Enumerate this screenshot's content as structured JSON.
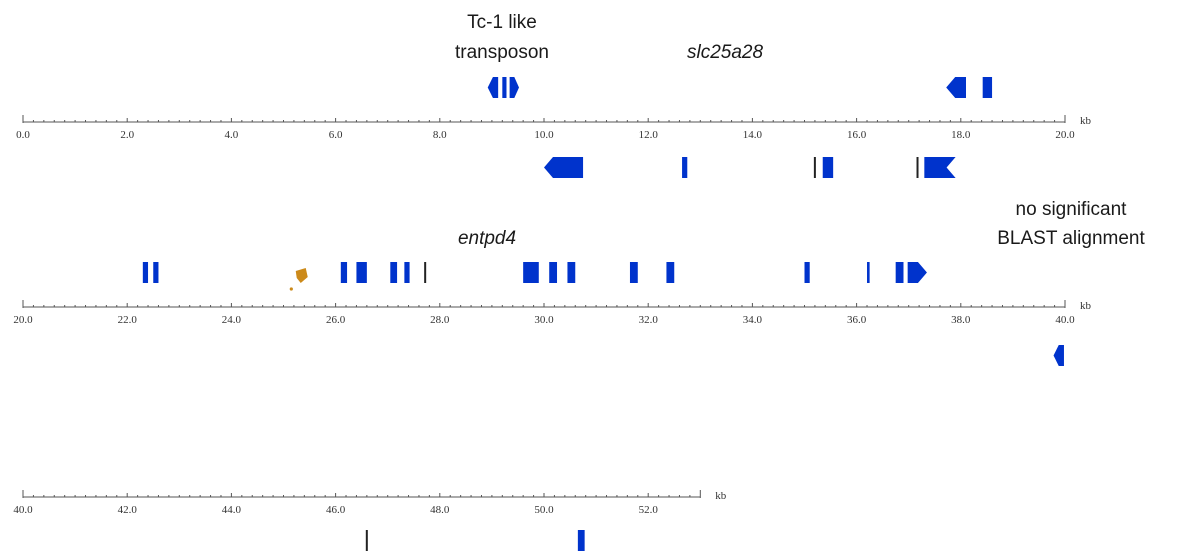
{
  "annotations": {
    "transposon_line1": "Tc-1 like",
    "transposon_line2": "transposon",
    "gene_top": "slc25a28",
    "gene_middle": "entpd4",
    "noalign_line1": "no significant",
    "noalign_line2": "BLAST alignment"
  },
  "colors": {
    "exon": "#0033cc",
    "marker": "#cc8a1a",
    "axis": "#555555"
  },
  "tracks": [
    {
      "id": "track-1",
      "start": 0,
      "end": 20,
      "unit": "kb",
      "ticks": [
        "0.0",
        "2.0",
        "4.0",
        "6.0",
        "8.0",
        "10.0",
        "12.0",
        "14.0",
        "16.0",
        "18.0",
        "20.0"
      ],
      "above": [
        {
          "s": 8.92,
          "e": 9.12,
          "shape": "arrow-left"
        },
        {
          "s": 9.2,
          "e": 9.28,
          "shape": "bar"
        },
        {
          "s": 9.34,
          "e": 9.52,
          "shape": "arrow-right"
        },
        {
          "s": 17.72,
          "e": 18.1,
          "shape": "arrow-left"
        },
        {
          "s": 18.42,
          "e": 18.6,
          "shape": "bar"
        }
      ],
      "below": [
        {
          "s": 10.0,
          "e": 10.75,
          "shape": "arrow-left"
        },
        {
          "s": 12.65,
          "e": 12.75,
          "shape": "bar"
        },
        {
          "s": 15.18,
          "e": 15.22,
          "shape": "line"
        },
        {
          "s": 15.35,
          "e": 15.55,
          "shape": "bar"
        },
        {
          "s": 17.15,
          "e": 17.19,
          "shape": "line"
        },
        {
          "s": 17.3,
          "e": 17.9,
          "shape": "arrow-right-notch"
        }
      ]
    },
    {
      "id": "track-2",
      "start": 20,
      "end": 40,
      "unit": "kb",
      "ticks": [
        "20.0",
        "22.0",
        "24.0",
        "26.0",
        "28.0",
        "30.0",
        "32.0",
        "34.0",
        "36.0",
        "38.0",
        "40.0"
      ],
      "above": [
        {
          "s": 22.3,
          "e": 22.4,
          "shape": "bar"
        },
        {
          "s": 22.5,
          "e": 22.6,
          "shape": "bar"
        },
        {
          "s": 26.1,
          "e": 26.22,
          "shape": "bar"
        },
        {
          "s": 26.4,
          "e": 26.6,
          "shape": "bar"
        },
        {
          "s": 27.05,
          "e": 27.18,
          "shape": "bar"
        },
        {
          "s": 27.32,
          "e": 27.42,
          "shape": "bar"
        },
        {
          "s": 27.7,
          "e": 27.74,
          "shape": "line"
        },
        {
          "s": 29.6,
          "e": 29.9,
          "shape": "bar"
        },
        {
          "s": 30.1,
          "e": 30.25,
          "shape": "bar"
        },
        {
          "s": 30.45,
          "e": 30.6,
          "shape": "bar"
        },
        {
          "s": 31.65,
          "e": 31.8,
          "shape": "bar"
        },
        {
          "s": 32.35,
          "e": 32.5,
          "shape": "bar"
        },
        {
          "s": 35.0,
          "e": 35.1,
          "shape": "bar"
        },
        {
          "s": 36.2,
          "e": 36.25,
          "shape": "bar"
        },
        {
          "s": 36.75,
          "e": 36.9,
          "shape": "bar"
        },
        {
          "s": 36.98,
          "e": 37.35,
          "shape": "arrow-right"
        }
      ],
      "below": [
        {
          "s": 39.78,
          "e": 39.98,
          "shape": "arrow-left"
        }
      ],
      "markers": [
        {
          "pos": 25.35,
          "size": "large"
        },
        {
          "pos": 25.15,
          "size": "small"
        }
      ]
    },
    {
      "id": "track-3",
      "start": 40,
      "end": 53,
      "unit": "kb",
      "ticks": [
        "40.0",
        "42.0",
        "44.0",
        "46.0",
        "48.0",
        "50.0",
        "52.0"
      ],
      "above": [],
      "below": [
        {
          "s": 46.58,
          "e": 46.62,
          "shape": "line"
        },
        {
          "s": 50.65,
          "e": 50.78,
          "shape": "bar"
        }
      ]
    }
  ]
}
